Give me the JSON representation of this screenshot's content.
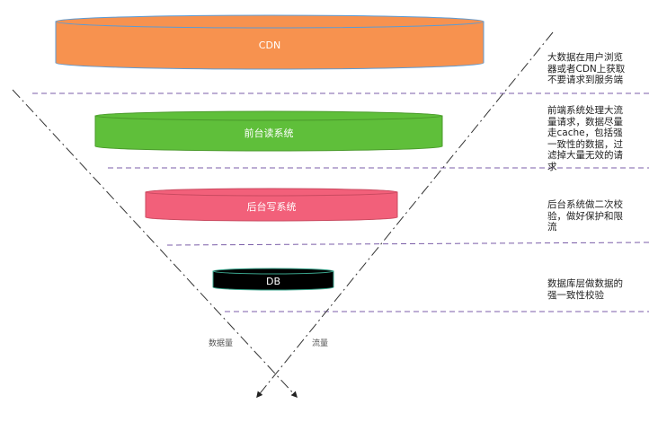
{
  "layers": [
    {
      "id": "cdn",
      "label": "CDN",
      "fill": "#f7924f",
      "stroke": "#5b9bd5",
      "text_color": "#ffffff"
    },
    {
      "id": "frontend-read",
      "label": "前台读系统",
      "fill": "#5fbf3a",
      "stroke": "#4a9a2b",
      "text_color": "#ffffff"
    },
    {
      "id": "backend-write",
      "label": "后台写系统",
      "fill": "#f2607a",
      "stroke": "#c94a60",
      "text_color": "#ffffff"
    },
    {
      "id": "db",
      "label": "DB",
      "fill": "#000000",
      "stroke": "#3aa48c",
      "text_color": "#ffffff"
    }
  ],
  "annotations": [
    {
      "text": "大数据在用户浏览\n器或者CDN上获取\n不要请求到服务端"
    },
    {
      "text": "前端系统处理大流\n量请求，数据尽量\n走cache，包括强\n一致性的数据，过\n滤掉大量无效的请\n求"
    },
    {
      "text": "后台系统做二次校\n验，做好保护和限\n流"
    },
    {
      "text": "数据库层做数据的\n强一致性校验"
    }
  ],
  "arrows": {
    "data_volume": {
      "label": "数据量"
    },
    "traffic": {
      "label": "流量"
    }
  },
  "colors": {
    "divider": "#7b5ea8",
    "arrow_line": "#333333"
  }
}
